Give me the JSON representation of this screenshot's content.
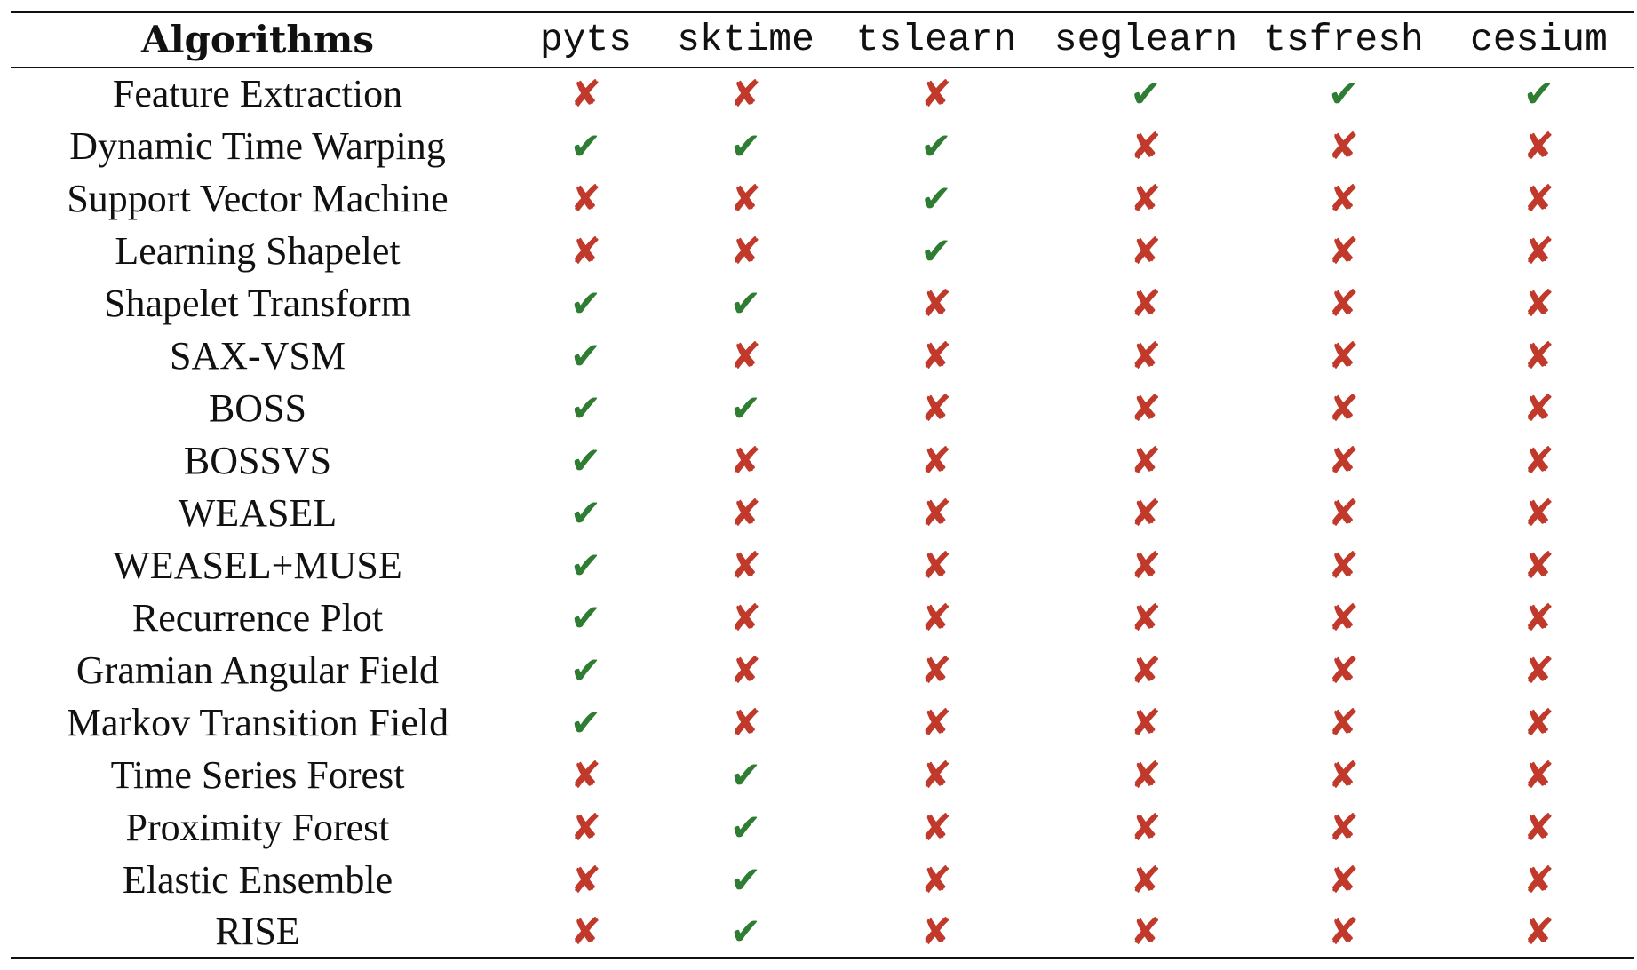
{
  "table": {
    "header": {
      "first_column": "Algorithms",
      "libraries": [
        "pyts",
        "sktime",
        "tslearn",
        "seglearn",
        "tsfresh",
        "cesium"
      ]
    },
    "symbols": {
      "yes": "✔",
      "no": "✘"
    },
    "colors": {
      "yes": "#2e7d32",
      "no": "#c0392b"
    },
    "rows": [
      {
        "name": "Feature Extraction",
        "support": [
          false,
          false,
          false,
          true,
          true,
          true
        ]
      },
      {
        "name": "Dynamic Time Warping",
        "support": [
          true,
          true,
          true,
          false,
          false,
          false
        ]
      },
      {
        "name": "Support Vector Machine",
        "support": [
          false,
          false,
          true,
          false,
          false,
          false
        ]
      },
      {
        "name": "Learning Shapelet",
        "support": [
          false,
          false,
          true,
          false,
          false,
          false
        ]
      },
      {
        "name": "Shapelet Transform",
        "support": [
          true,
          true,
          false,
          false,
          false,
          false
        ]
      },
      {
        "name": "SAX-VSM",
        "support": [
          true,
          false,
          false,
          false,
          false,
          false
        ]
      },
      {
        "name": "BOSS",
        "support": [
          true,
          true,
          false,
          false,
          false,
          false
        ]
      },
      {
        "name": "BOSSVS",
        "support": [
          true,
          false,
          false,
          false,
          false,
          false
        ]
      },
      {
        "name": "WEASEL",
        "support": [
          true,
          false,
          false,
          false,
          false,
          false
        ]
      },
      {
        "name": "WEASEL+MUSE",
        "support": [
          true,
          false,
          false,
          false,
          false,
          false
        ]
      },
      {
        "name": "Recurrence Plot",
        "support": [
          true,
          false,
          false,
          false,
          false,
          false
        ]
      },
      {
        "name": "Gramian Angular Field",
        "support": [
          true,
          false,
          false,
          false,
          false,
          false
        ]
      },
      {
        "name": "Markov Transition Field",
        "support": [
          true,
          false,
          false,
          false,
          false,
          false
        ]
      },
      {
        "name": "Time Series Forest",
        "support": [
          false,
          true,
          false,
          false,
          false,
          false
        ]
      },
      {
        "name": "Proximity Forest",
        "support": [
          false,
          true,
          false,
          false,
          false,
          false
        ]
      },
      {
        "name": "Elastic Ensemble",
        "support": [
          false,
          true,
          false,
          false,
          false,
          false
        ]
      },
      {
        "name": "RISE",
        "support": [
          false,
          true,
          false,
          false,
          false,
          false
        ]
      }
    ]
  }
}
